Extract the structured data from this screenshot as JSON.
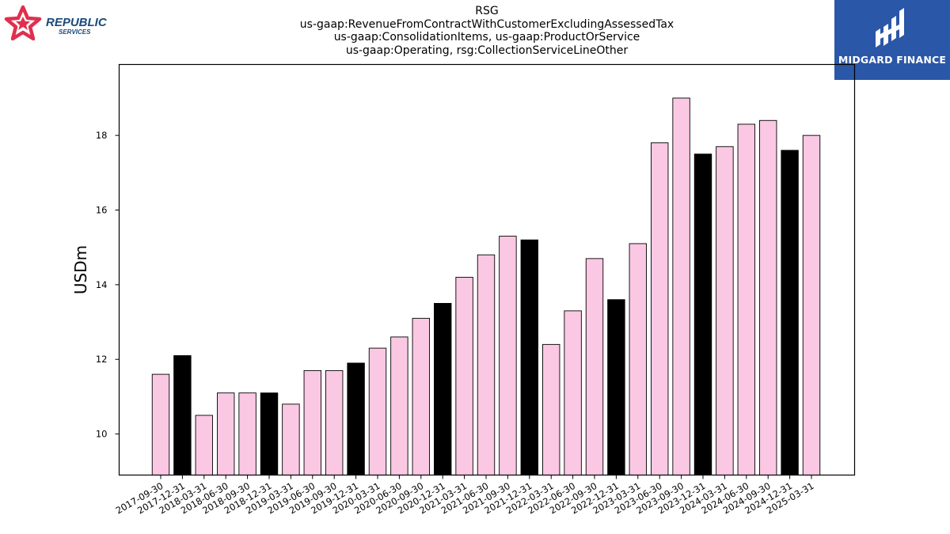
{
  "header": {
    "title_lines": [
      "RSG",
      "us-gaap:RevenueFromContractWithCustomerExcludingAssessedTax",
      "us-gaap:ConsolidationItems, us-gaap:ProductOrService",
      "us-gaap:Operating, rsg:CollectionServiceLineOther"
    ]
  },
  "logos": {
    "left": {
      "word1": "REPUBLIC",
      "word2": "SERVICES",
      "text_color": "#1a4a7a",
      "mark_color": "#e0304f"
    },
    "right": {
      "text": "MIDGARD FINANCE",
      "bg": "#2b57a8"
    }
  },
  "chart_data": {
    "type": "bar",
    "ylabel": "USDm",
    "xlabel": "",
    "ylim": [
      8.9,
      19.9
    ],
    "yticks": [
      10,
      12,
      14,
      16,
      18
    ],
    "colors": {
      "quarter": "#fbc8e3",
      "year_end": "#000000",
      "edge": "#000000"
    },
    "categories": [
      "2017-09-30",
      "2017-12-31",
      "2018-03-31",
      "2018-06-30",
      "2018-09-30",
      "2018-12-31",
      "2019-03-31",
      "2019-06-30",
      "2019-09-30",
      "2019-12-31",
      "2020-03-31",
      "2020-06-30",
      "2020-09-30",
      "2020-12-31",
      "2021-03-31",
      "2021-06-30",
      "2021-09-30",
      "2021-12-31",
      "2022-03-31",
      "2022-06-30",
      "2022-09-30",
      "2022-12-31",
      "2023-03-31",
      "2023-06-30",
      "2023-09-30",
      "2023-12-31",
      "2024-03-31",
      "2024-06-30",
      "2024-09-30",
      "2024-12-31",
      "2025-03-31"
    ],
    "values": [
      11.6,
      12.1,
      10.5,
      11.1,
      11.1,
      11.1,
      10.8,
      11.7,
      11.7,
      11.9,
      12.3,
      12.6,
      13.1,
      13.5,
      14.2,
      14.8,
      15.3,
      15.2,
      12.4,
      13.3,
      14.7,
      13.6,
      15.1,
      17.8,
      19.0,
      17.5,
      17.7,
      18.3,
      18.4,
      17.6,
      18.0
    ]
  }
}
